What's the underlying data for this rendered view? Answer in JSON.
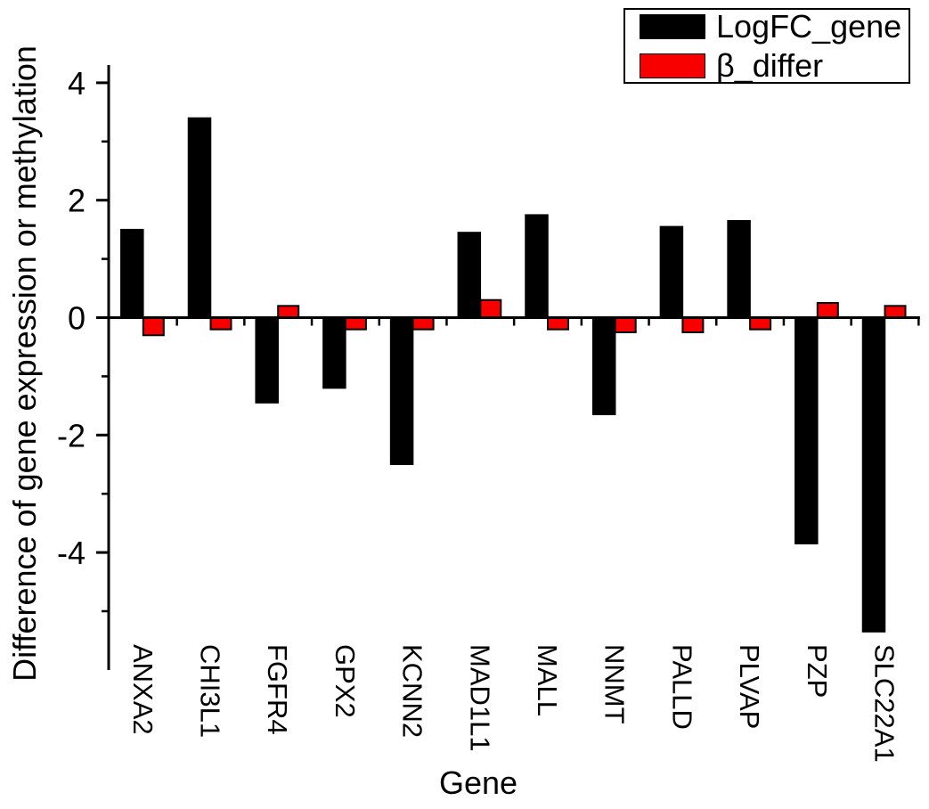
{
  "axes": {
    "x_title": "Gene",
    "y_title": "Difference of gene expression or methylation"
  },
  "legend": {
    "items": [
      {
        "label": "LogFC_gene",
        "color": "#000000"
      },
      {
        "label": "β_differ",
        "color": "#f80000"
      }
    ]
  },
  "chart_data": {
    "type": "bar",
    "title": "",
    "xlabel": "Gene",
    "ylabel": "Difference of gene expression or methylation",
    "categories": [
      "ANXA2",
      "CHI3L1",
      "FGFR4",
      "GPX2",
      "KCNN2",
      "MAD1L1",
      "MALL",
      "NNMT",
      "PALLD",
      "PLVAP",
      "PZP",
      "SLC22A1"
    ],
    "series": [
      {
        "name": "LogFC_gene",
        "color": "#000000",
        "values": [
          1.5,
          3.4,
          -1.45,
          -1.2,
          -2.5,
          1.45,
          1.75,
          -1.65,
          1.55,
          1.65,
          -3.85,
          -5.35
        ]
      },
      {
        "name": "β_differ",
        "color": "#f80000",
        "values": [
          -0.3,
          -0.2,
          0.2,
          -0.2,
          -0.2,
          0.3,
          -0.2,
          -0.25,
          -0.25,
          -0.2,
          0.25,
          0.2
        ]
      }
    ],
    "yticks_major": [
      4,
      2,
      0,
      -2,
      -4
    ],
    "yticks_minor": [
      3,
      1,
      -1,
      -3,
      -5
    ],
    "ylim": [
      -6.0,
      4.3
    ],
    "grid": false,
    "legend_position": "top-right",
    "bar_outline_color": "#000000",
    "background_color": "#ffffff"
  }
}
